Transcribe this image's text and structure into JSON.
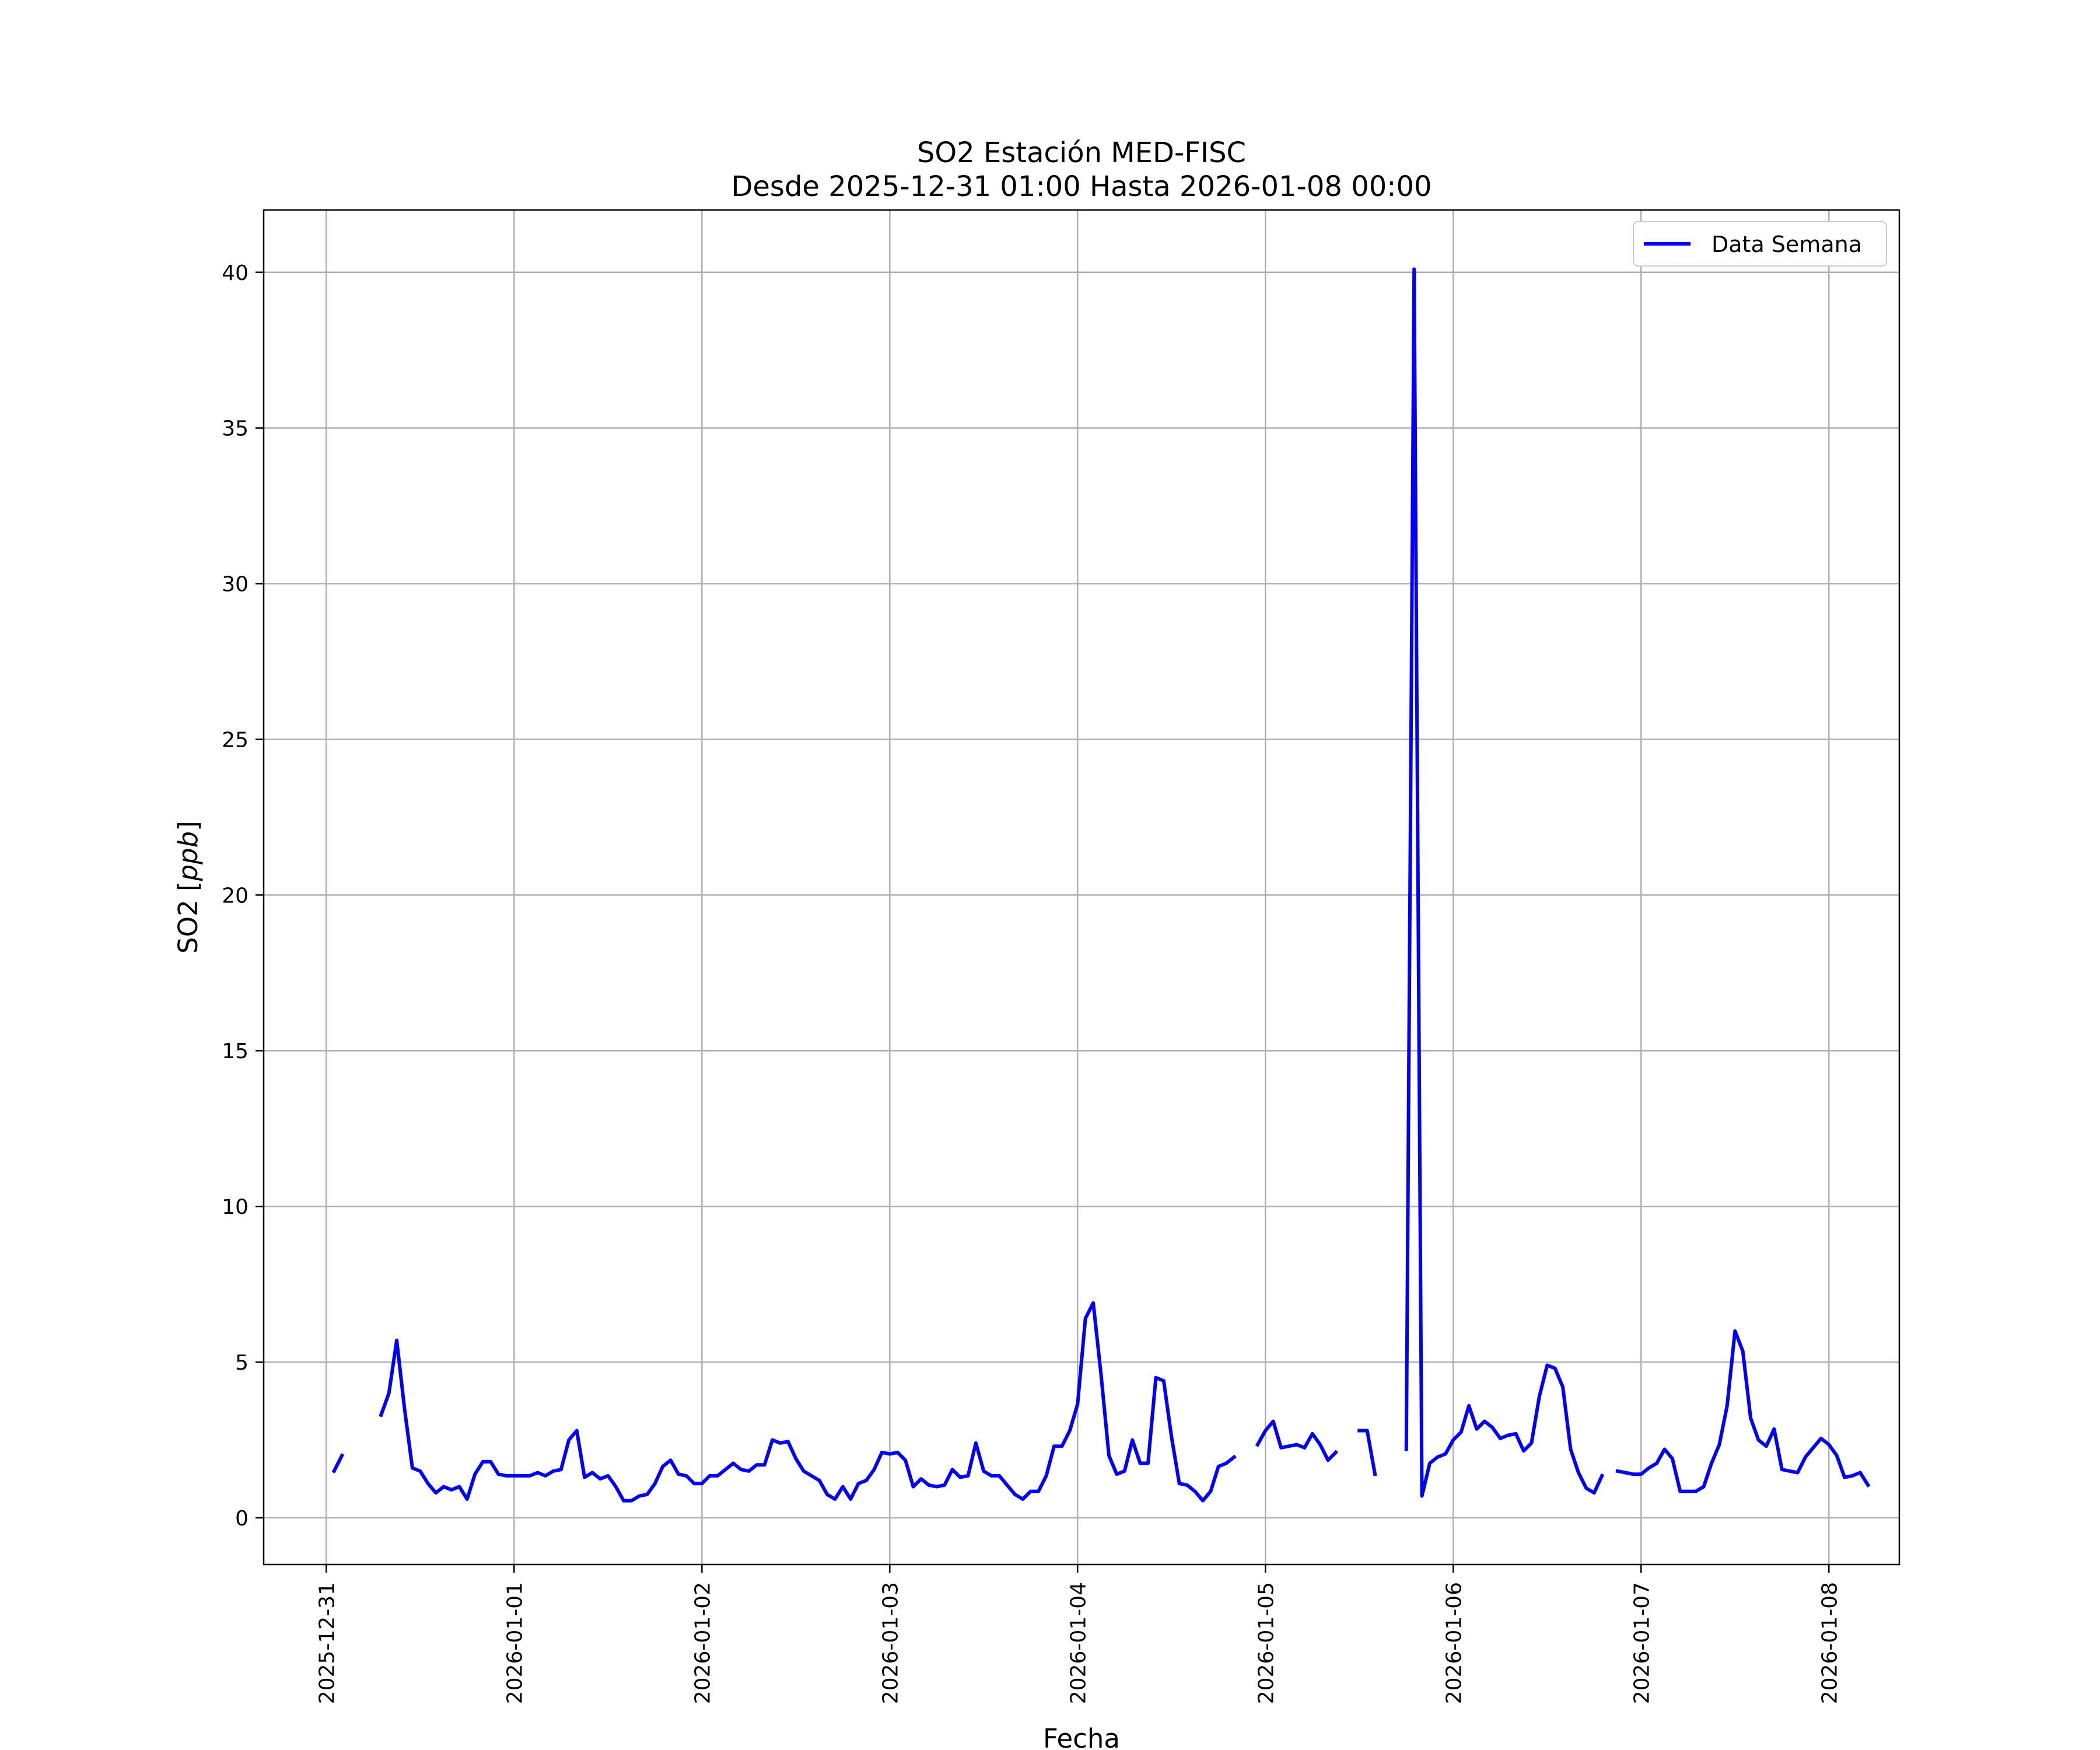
{
  "chart_data": {
    "type": "line",
    "title": "SO2 Estación MED-FISC",
    "subtitle": "Desde 2025-12-31 01:00 Hasta 2026-01-08 00:00",
    "xlabel": "Fecha",
    "ylabel_main": "SO2 [",
    "ylabel_unit": "ppb",
    "ylabel_close": "]",
    "xlim": [
      "2025-12-30 16:00",
      "2026-01-08 09:00"
    ],
    "ylim": [
      -1.5,
      42
    ],
    "x_ticks": [
      "2025-12-31",
      "2026-01-01",
      "2026-01-02",
      "2026-01-03",
      "2026-01-04",
      "2026-01-05",
      "2026-01-06",
      "2026-01-07",
      "2026-01-08"
    ],
    "y_ticks": [
      0,
      5,
      10,
      15,
      20,
      25,
      30,
      35,
      40
    ],
    "y_tick_labels": [
      "0",
      "5",
      "10",
      "15",
      "20",
      "25",
      "30",
      "35",
      "40"
    ],
    "grid": true,
    "legend_position": "top-right",
    "series": [
      {
        "name": "Data Semana",
        "color": "#0000ff",
        "start": "2025-12-31 01:00",
        "interval_hours": 1,
        "values": [
          1.5,
          2.0,
          null,
          null,
          null,
          null,
          3.3,
          4.0,
          5.7,
          3.5,
          1.6,
          1.5,
          1.1,
          0.8,
          1.0,
          0.9,
          1.0,
          0.6,
          1.4,
          1.8,
          1.8,
          1.4,
          1.35,
          1.35,
          1.35,
          1.35,
          1.45,
          1.35,
          1.5,
          1.55,
          2.5,
          2.8,
          1.3,
          1.45,
          1.25,
          1.35,
          1.0,
          0.55,
          0.55,
          0.7,
          0.75,
          1.1,
          1.65,
          1.85,
          1.4,
          1.35,
          1.1,
          1.1,
          1.35,
          1.35,
          1.55,
          1.75,
          1.55,
          1.5,
          1.7,
          1.7,
          2.5,
          2.4,
          2.45,
          1.9,
          1.5,
          1.35,
          1.2,
          0.75,
          0.6,
          1.0,
          0.6,
          1.1,
          1.2,
          1.55,
          2.1,
          2.05,
          2.1,
          1.85,
          1.0,
          1.25,
          1.05,
          1.0,
          1.05,
          1.55,
          1.3,
          1.35,
          2.4,
          1.5,
          1.35,
          1.35,
          1.05,
          0.75,
          0.6,
          0.85,
          0.85,
          1.35,
          2.3,
          2.3,
          2.8,
          3.65,
          6.4,
          6.9,
          4.6,
          2.0,
          1.4,
          1.5,
          2.5,
          1.75,
          1.75,
          4.5,
          4.4,
          2.6,
          1.1,
          1.05,
          0.85,
          0.55,
          0.85,
          1.65,
          1.75,
          1.95,
          null,
          null,
          2.35,
          2.8,
          3.1,
          2.25,
          2.3,
          2.35,
          2.25,
          2.7,
          2.35,
          1.85,
          2.1,
          null,
          null,
          2.8,
          2.8,
          1.4,
          null,
          null,
          null,
          2.2,
          40.1,
          0.7,
          1.75,
          1.95,
          2.05,
          2.5,
          2.75,
          3.6,
          2.85,
          3.1,
          2.9,
          2.55,
          2.65,
          2.7,
          2.15,
          2.4,
          3.9,
          4.9,
          4.8,
          4.2,
          2.2,
          1.45,
          0.95,
          0.8,
          1.35,
          null,
          1.5,
          1.45,
          1.4,
          1.4,
          1.6,
          1.75,
          2.2,
          1.9,
          0.85,
          0.85,
          0.85,
          1.0,
          1.75,
          2.35,
          3.6,
          6.0,
          5.35,
          3.2,
          2.5,
          2.3,
          2.85,
          1.55,
          1.5,
          1.45,
          1.95,
          2.25,
          2.55,
          2.35,
          2.0,
          1.3,
          1.35,
          1.45,
          1.05
        ]
      }
    ]
  }
}
